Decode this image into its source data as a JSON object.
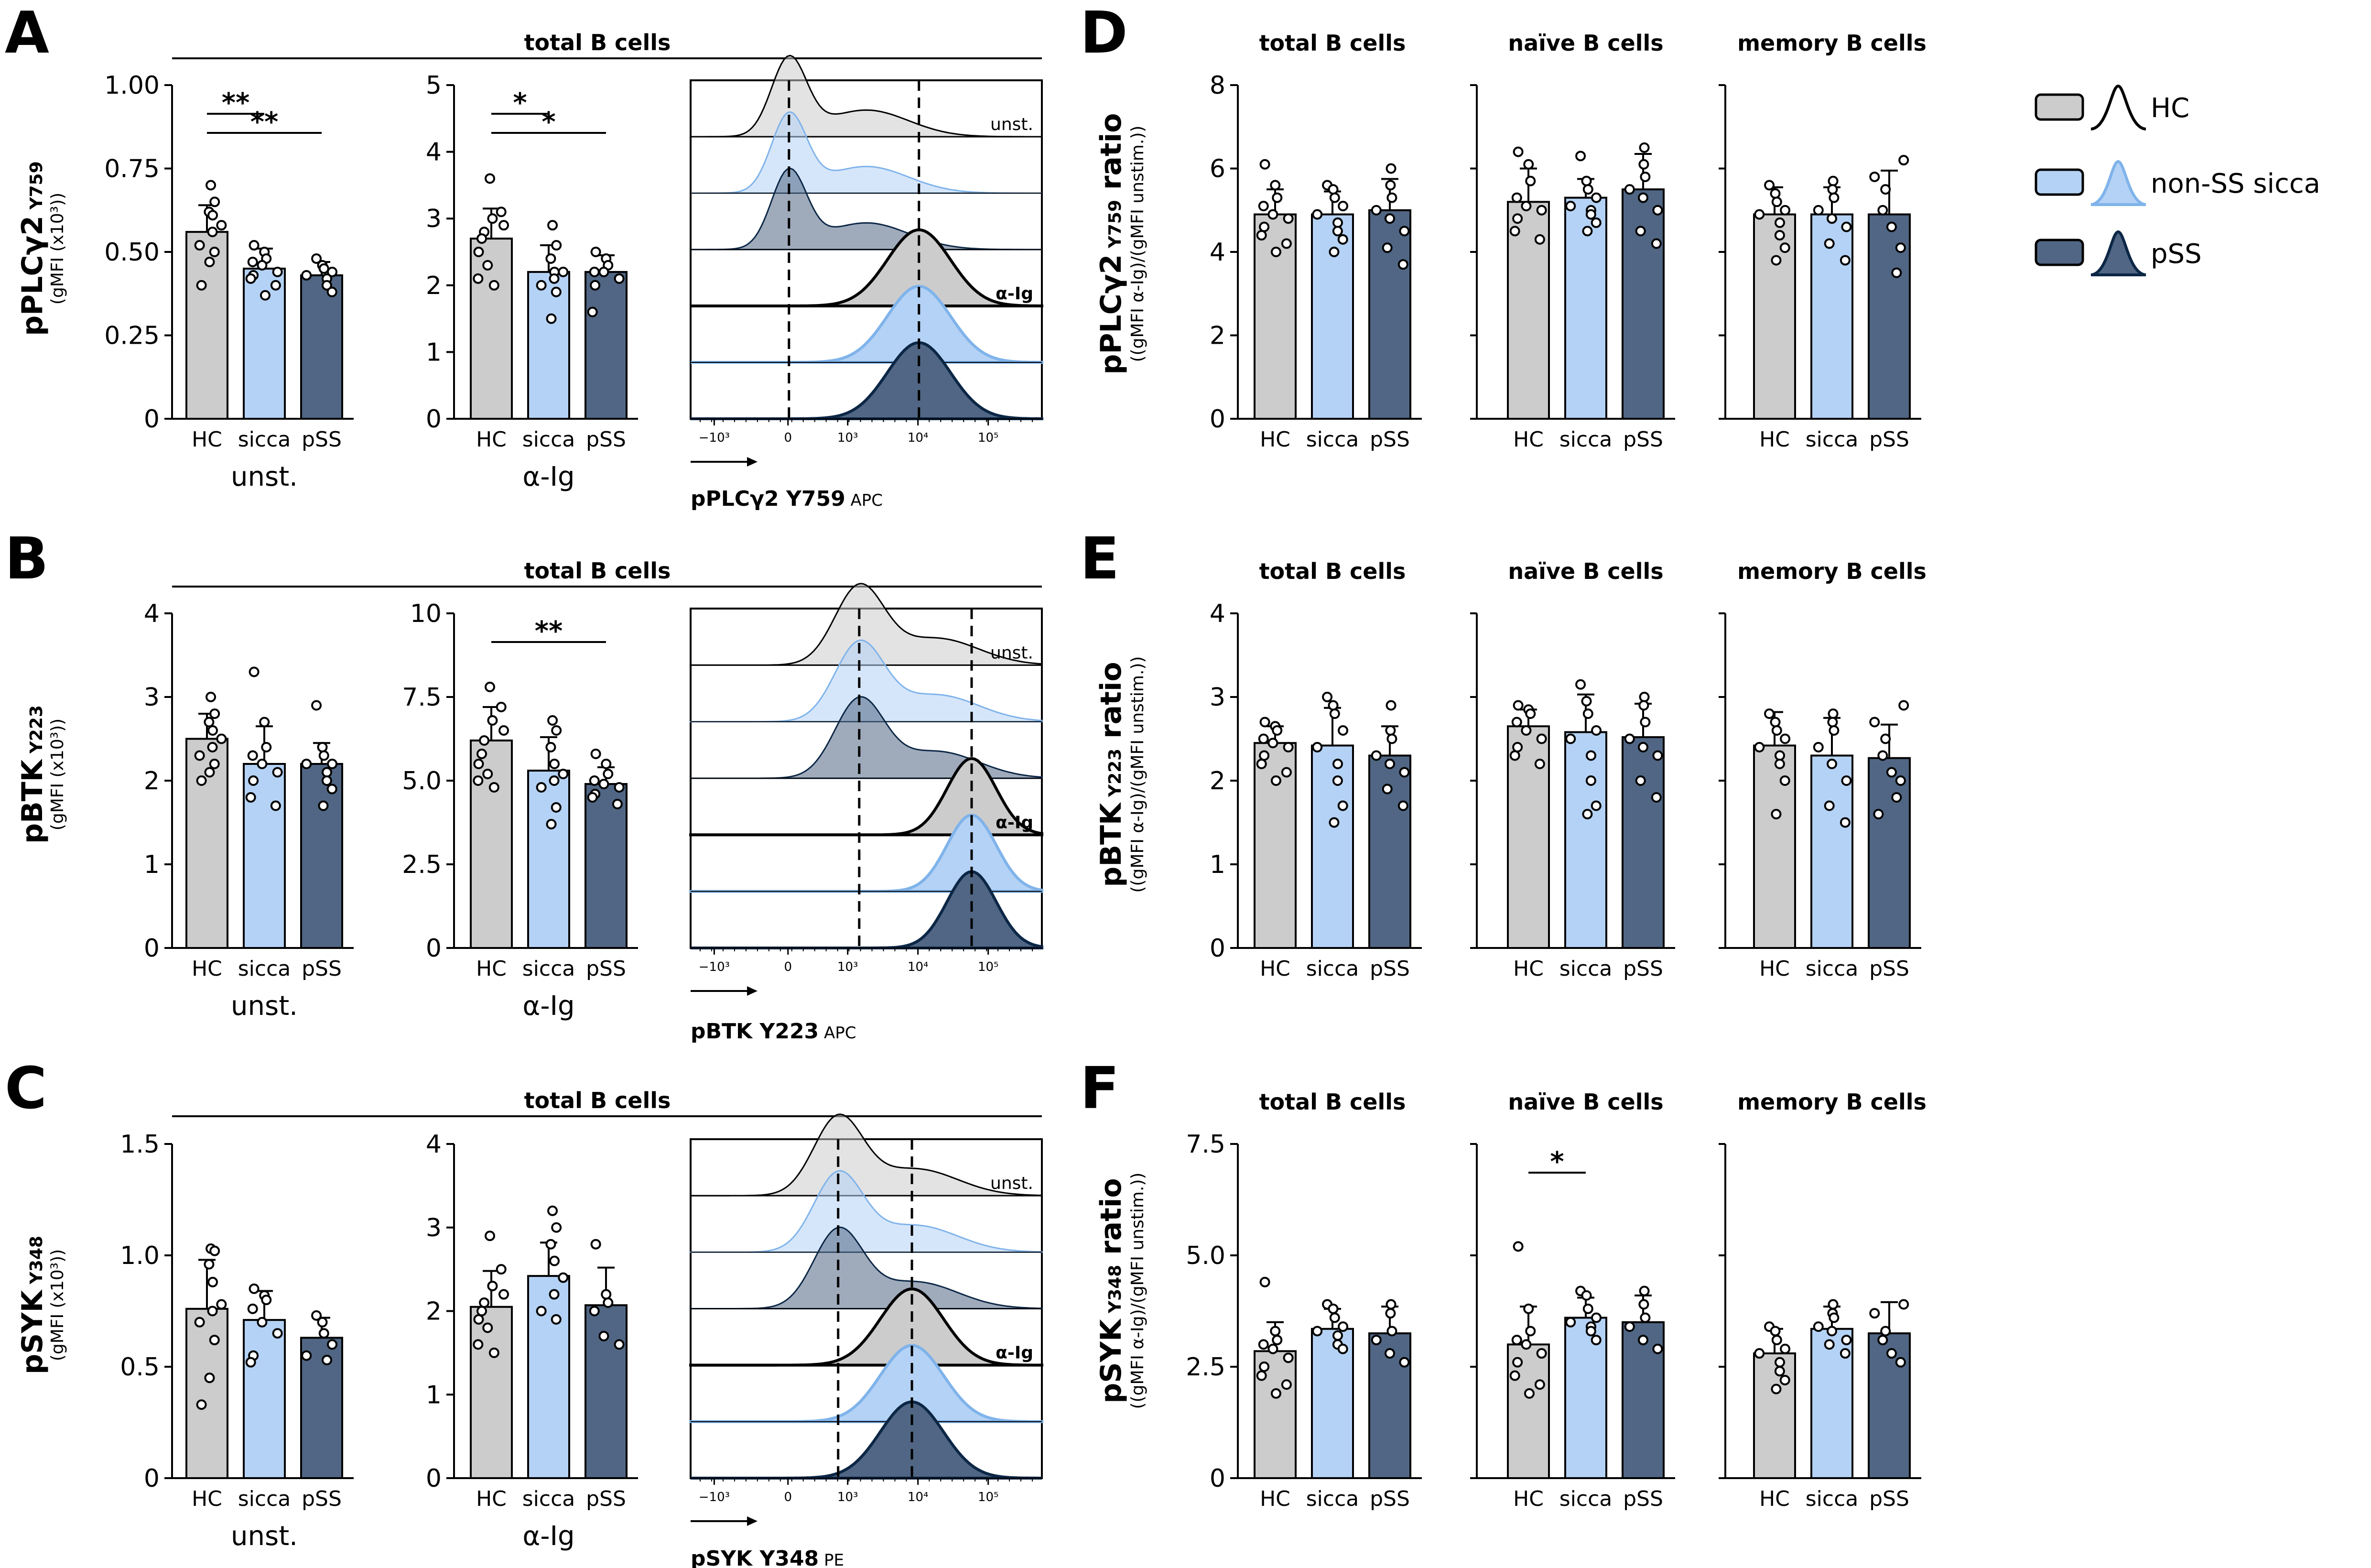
{
  "colors": {
    "HC": "#cccccc",
    "sicca": "#b4d2f5",
    "pSS": "#506684"
  },
  "legend": [
    {
      "key": "HC",
      "label": "HC"
    },
    {
      "key": "sicca",
      "label": "non-SS sicca"
    },
    {
      "key": "pSS",
      "label": "pSS"
    }
  ],
  "labels": {
    "unst": "unst.",
    "aIg": "α-Ig",
    "total": "total B cells",
    "naive": "naïve B cells",
    "memory": "memory B cells"
  },
  "cats": [
    "HC",
    "sicca",
    "pSS"
  ],
  "hist_xticks": [
    "−10³",
    "0",
    "10³",
    "10⁴",
    "10⁵"
  ],
  "rows": [
    {
      "letter": "A",
      "ratio_letter": "D",
      "ylabel": {
        "main": "pPLCγ2",
        "sup": " Y759",
        "sub": "(gMFI (x10³))"
      },
      "ratio_ylabel": {
        "main": "pPLCγ2",
        "sup": " Y759",
        "tail": " ratio",
        "sub": "((gMFI α-Ig)/(gMFI unstim.))"
      },
      "hist_xlabel": {
        "main": "pPLCγ2 Y759",
        "sub": " APC"
      }
    },
    {
      "letter": "B",
      "ratio_letter": "E",
      "ylabel": {
        "main": "pBTK",
        "sup": " Y223",
        "sub": "(gMFI (x10³))"
      },
      "ratio_ylabel": {
        "main": "pBTK",
        "sup": " Y223",
        "tail": " ratio",
        "sub": "((gMFI α-Ig)/(gMFI unstim.))"
      },
      "hist_xlabel": {
        "main": "pBTK Y223",
        "sub": " APC"
      }
    },
    {
      "letter": "C",
      "ratio_letter": "F",
      "ylabel": {
        "main": "pSYK",
        "sup": " Y348",
        "sub": "(gMFI (x10³))"
      },
      "ratio_ylabel": {
        "main": "pSYK",
        "sup": " Y348",
        "tail": " ratio",
        "sub": "((gMFI α-Ig)/(gMFI unstim.))"
      },
      "hist_xlabel": {
        "main": "pSYK Y348",
        "sub": " PE"
      }
    }
  ],
  "chart_data": [
    {
      "id": "A-unst",
      "type": "bar",
      "categories": [
        "HC",
        "sicca",
        "pSS"
      ],
      "ylim": [
        0,
        1
      ],
      "yticks": [
        "0",
        "0.25",
        "0.50",
        "0.75",
        "1.00"
      ],
      "xlabel": "unst.",
      "values": [
        0.56,
        0.45,
        0.43
      ],
      "sd": [
        0.08,
        0.06,
        0.04
      ],
      "points": [
        [
          0.7,
          0.65,
          0.62,
          0.61,
          0.58,
          0.56,
          0.52,
          0.5,
          0.47,
          0.4
        ],
        [
          0.52,
          0.5,
          0.48,
          0.47,
          0.46,
          0.44,
          0.43,
          0.42,
          0.4,
          0.37
        ],
        [
          0.48,
          0.46,
          0.45,
          0.44,
          0.43,
          0.42,
          0.4,
          0.38
        ]
      ],
      "sig": [
        {
          "from": 0,
          "to": 1,
          "label": "**"
        },
        {
          "from": 0,
          "to": 2,
          "label": "**"
        }
      ]
    },
    {
      "id": "A-aIg",
      "type": "bar",
      "categories": [
        "HC",
        "sicca",
        "pSS"
      ],
      "ylim": [
        0,
        5
      ],
      "yticks": [
        "0",
        "1",
        "2",
        "3",
        "4",
        "5"
      ],
      "xlabel": "α-Ig",
      "values": [
        2.7,
        2.2,
        2.2
      ],
      "sd": [
        0.45,
        0.4,
        0.25
      ],
      "points": [
        [
          3.6,
          3.1,
          3.0,
          2.9,
          2.8,
          2.7,
          2.5,
          2.3,
          2.1,
          2.0
        ],
        [
          2.9,
          2.6,
          2.4,
          2.2,
          2.2,
          2.1,
          2.0,
          1.9,
          1.5
        ],
        [
          2.5,
          2.4,
          2.3,
          2.2,
          2.2,
          2.1,
          2.0,
          1.6
        ]
      ],
      "sig": [
        {
          "from": 0,
          "to": 1,
          "label": "*"
        },
        {
          "from": 0,
          "to": 2,
          "label": "*"
        }
      ]
    },
    {
      "id": "B-unst",
      "type": "bar",
      "categories": [
        "HC",
        "sicca",
        "pSS"
      ],
      "ylim": [
        0,
        4
      ],
      "yticks": [
        "0",
        "1",
        "2",
        "3",
        "4"
      ],
      "xlabel": "unst.",
      "values": [
        2.5,
        2.2,
        2.2
      ],
      "sd": [
        0.3,
        0.45,
        0.25
      ],
      "points": [
        [
          3.0,
          2.8,
          2.7,
          2.6,
          2.5,
          2.4,
          2.3,
          2.2,
          2.1,
          2.0
        ],
        [
          3.3,
          2.7,
          2.4,
          2.3,
          2.2,
          2.1,
          2.0,
          1.8,
          1.7
        ],
        [
          2.9,
          2.4,
          2.3,
          2.2,
          2.2,
          2.1,
          2.0,
          1.9,
          1.7
        ]
      ],
      "sig": []
    },
    {
      "id": "B-aIg",
      "type": "bar",
      "categories": [
        "HC",
        "sicca",
        "pSS"
      ],
      "ylim": [
        0,
        10
      ],
      "yticks": [
        "0",
        "2.5",
        "5.0",
        "7.5",
        "10"
      ],
      "xlabel": "α-Ig",
      "values": [
        6.2,
        5.3,
        4.9
      ],
      "sd": [
        1.0,
        1.0,
        0.5
      ],
      "points": [
        [
          7.8,
          7.2,
          6.8,
          6.5,
          6.2,
          5.8,
          5.5,
          5.2,
          5.0,
          4.8
        ],
        [
          6.8,
          6.5,
          6.0,
          5.5,
          5.2,
          5.0,
          4.8,
          4.2,
          3.7
        ],
        [
          5.8,
          5.5,
          5.2,
          5.0,
          4.9,
          4.8,
          4.6,
          4.5,
          4.3
        ]
      ],
      "sig": [
        {
          "from": 0,
          "to": 2,
          "label": "**"
        }
      ]
    },
    {
      "id": "C-unst",
      "type": "bar",
      "categories": [
        "HC",
        "sicca",
        "pSS"
      ],
      "ylim": [
        0,
        1.5
      ],
      "yticks": [
        "0",
        "0.5",
        "1.0",
        "1.5"
      ],
      "xlabel": "unst.",
      "values": [
        0.76,
        0.71,
        0.63
      ],
      "sd": [
        0.22,
        0.13,
        0.09
      ],
      "points": [
        [
          1.03,
          1.02,
          0.96,
          0.88,
          0.78,
          0.75,
          0.7,
          0.62,
          0.45,
          0.33
        ],
        [
          0.85,
          0.82,
          0.8,
          0.76,
          0.7,
          0.65,
          0.55,
          0.52
        ],
        [
          0.73,
          0.7,
          0.65,
          0.6,
          0.55,
          0.53
        ]
      ],
      "sig": []
    },
    {
      "id": "C-aIg",
      "type": "bar",
      "categories": [
        "HC",
        "sicca",
        "pSS"
      ],
      "ylim": [
        0,
        4
      ],
      "yticks": [
        "0",
        "1",
        "2",
        "3",
        "4"
      ],
      "xlabel": "α-Ig",
      "values": [
        2.05,
        2.42,
        2.07
      ],
      "sd": [
        0.43,
        0.4,
        0.45
      ],
      "points": [
        [
          2.9,
          2.5,
          2.3,
          2.2,
          2.1,
          2.0,
          1.9,
          1.8,
          1.6,
          1.5
        ],
        [
          3.2,
          3.0,
          2.8,
          2.6,
          2.4,
          2.2,
          2.0,
          1.9
        ],
        [
          2.8,
          2.2,
          2.1,
          2.0,
          1.7,
          1.6
        ]
      ],
      "sig": []
    },
    {
      "id": "D-total",
      "type": "bar",
      "categories": [
        "HC",
        "sicca",
        "pSS"
      ],
      "ylim": [
        0,
        8
      ],
      "yticks": [
        "0",
        "2",
        "4",
        "6",
        "8"
      ],
      "title": "total B cells",
      "values": [
        4.9,
        4.9,
        5.0
      ],
      "sd": [
        0.6,
        0.55,
        0.75
      ],
      "points": [
        [
          6.1,
          5.6,
          5.3,
          5.1,
          4.9,
          4.8,
          4.6,
          4.4,
          4.2,
          4.0
        ],
        [
          5.6,
          5.5,
          5.3,
          5.1,
          4.9,
          4.7,
          4.5,
          4.3,
          4.0
        ],
        [
          6.0,
          5.6,
          5.3,
          5.0,
          4.8,
          4.5,
          4.1,
          3.7
        ]
      ],
      "sig": []
    },
    {
      "id": "D-naive",
      "type": "bar",
      "categories": [
        "HC",
        "sicca",
        "pSS"
      ],
      "ylim": [
        0,
        8
      ],
      "title": "naïve B cells",
      "values": [
        5.2,
        5.3,
        5.5
      ],
      "sd": [
        0.8,
        0.45,
        0.85
      ],
      "points": [
        [
          6.4,
          6.1,
          5.7,
          5.3,
          5.1,
          5.0,
          4.8,
          4.5,
          4.3
        ],
        [
          6.3,
          5.7,
          5.5,
          5.3,
          5.1,
          5.0,
          4.9,
          4.7,
          4.5
        ],
        [
          6.5,
          6.1,
          5.8,
          5.5,
          5.3,
          5.0,
          4.5,
          4.2
        ]
      ],
      "sig": []
    },
    {
      "id": "D-memory",
      "type": "bar",
      "categories": [
        "HC",
        "sicca",
        "pSS"
      ],
      "ylim": [
        0,
        8
      ],
      "title": "memory B cells",
      "values": [
        4.9,
        4.9,
        4.9
      ],
      "sd": [
        0.65,
        0.65,
        1.05
      ],
      "points": [
        [
          5.6,
          5.4,
          5.2,
          5.0,
          4.9,
          4.7,
          4.4,
          4.1,
          3.8
        ],
        [
          5.7,
          5.5,
          5.3,
          5.0,
          4.8,
          4.6,
          4.2,
          3.8
        ],
        [
          6.2,
          5.8,
          5.5,
          5.0,
          4.6,
          4.1,
          3.5
        ]
      ],
      "sig": []
    },
    {
      "id": "E-total",
      "type": "bar",
      "categories": [
        "HC",
        "sicca",
        "pSS"
      ],
      "ylim": [
        0,
        4
      ],
      "yticks": [
        "0",
        "1",
        "2",
        "3",
        "4"
      ],
      "title": "total B cells",
      "values": [
        2.45,
        2.42,
        2.3
      ],
      "sd": [
        0.2,
        0.45,
        0.35
      ],
      "points": [
        [
          2.7,
          2.65,
          2.6,
          2.5,
          2.45,
          2.4,
          2.3,
          2.2,
          2.1,
          2.0
        ],
        [
          3.0,
          2.9,
          2.8,
          2.6,
          2.4,
          2.2,
          2.0,
          1.7,
          1.5
        ],
        [
          2.9,
          2.6,
          2.5,
          2.3,
          2.2,
          2.1,
          1.9,
          1.7
        ]
      ],
      "sig": []
    },
    {
      "id": "E-naive",
      "type": "bar",
      "categories": [
        "HC",
        "sicca",
        "pSS"
      ],
      "ylim": [
        0,
        4
      ],
      "title": "naïve B cells",
      "values": [
        2.65,
        2.58,
        2.52
      ],
      "sd": [
        0.2,
        0.45,
        0.4
      ],
      "points": [
        [
          2.9,
          2.85,
          2.8,
          2.7,
          2.6,
          2.5,
          2.4,
          2.3,
          2.2
        ],
        [
          3.15,
          2.95,
          2.8,
          2.6,
          2.5,
          2.3,
          2.0,
          1.7,
          1.6
        ],
        [
          3.0,
          2.9,
          2.7,
          2.5,
          2.4,
          2.3,
          2.0,
          1.8
        ]
      ],
      "sig": []
    },
    {
      "id": "E-memory",
      "type": "bar",
      "categories": [
        "HC",
        "sicca",
        "pSS"
      ],
      "ylim": [
        0,
        4
      ],
      "title": "memory B cells",
      "values": [
        2.42,
        2.3,
        2.27
      ],
      "sd": [
        0.4,
        0.45,
        0.4
      ],
      "points": [
        [
          2.8,
          2.7,
          2.6,
          2.5,
          2.4,
          2.3,
          2.2,
          2.0,
          1.6
        ],
        [
          2.8,
          2.7,
          2.6,
          2.4,
          2.2,
          2.0,
          1.7,
          1.5
        ],
        [
          2.9,
          2.7,
          2.5,
          2.3,
          2.1,
          2.0,
          1.8,
          1.6
        ]
      ],
      "sig": []
    },
    {
      "id": "F-total",
      "type": "bar",
      "categories": [
        "HC",
        "sicca",
        "pSS"
      ],
      "ylim": [
        0,
        7.5
      ],
      "yticks": [
        "0",
        "2.5",
        "5.0",
        "7.5"
      ],
      "title": "total B cells",
      "values": [
        2.85,
        3.35,
        3.25
      ],
      "sd": [
        0.65,
        0.45,
        0.6
      ],
      "points": [
        [
          4.4,
          3.3,
          3.1,
          3.0,
          2.9,
          2.7,
          2.5,
          2.3,
          2.1,
          1.9
        ],
        [
          3.9,
          3.8,
          3.6,
          3.4,
          3.3,
          3.2,
          3.0,
          2.9
        ],
        [
          3.9,
          3.7,
          3.3,
          3.1,
          2.8,
          2.6
        ]
      ],
      "sig": []
    },
    {
      "id": "F-naive",
      "type": "bar",
      "categories": [
        "HC",
        "sicca",
        "pSS"
      ],
      "ylim": [
        0,
        7.5
      ],
      "title": "naïve B cells",
      "values": [
        3.0,
        3.6,
        3.5
      ],
      "sd": [
        0.85,
        0.45,
        0.6
      ],
      "points": [
        [
          5.2,
          3.8,
          3.3,
          3.1,
          3.0,
          2.8,
          2.6,
          2.3,
          2.1,
          1.9
        ],
        [
          4.2,
          4.1,
          3.8,
          3.6,
          3.5,
          3.4,
          3.3,
          3.1
        ],
        [
          4.2,
          3.9,
          3.6,
          3.4,
          3.1,
          2.9
        ]
      ],
      "sig": [
        {
          "from": 0,
          "to": 1,
          "label": "*"
        }
      ]
    },
    {
      "id": "F-memory",
      "type": "bar",
      "categories": [
        "HC",
        "sicca",
        "pSS"
      ],
      "ylim": [
        0,
        7.5
      ],
      "title": "memory B cells",
      "values": [
        2.8,
        3.35,
        3.25
      ],
      "sd": [
        0.55,
        0.5,
        0.7
      ],
      "points": [
        [
          3.4,
          3.3,
          3.1,
          2.9,
          2.8,
          2.6,
          2.4,
          2.2,
          2.0
        ],
        [
          3.9,
          3.7,
          3.6,
          3.4,
          3.3,
          3.1,
          3.0,
          2.8
        ],
        [
          3.9,
          3.7,
          3.3,
          3.1,
          2.8,
          2.6
        ]
      ],
      "sig": []
    }
  ]
}
